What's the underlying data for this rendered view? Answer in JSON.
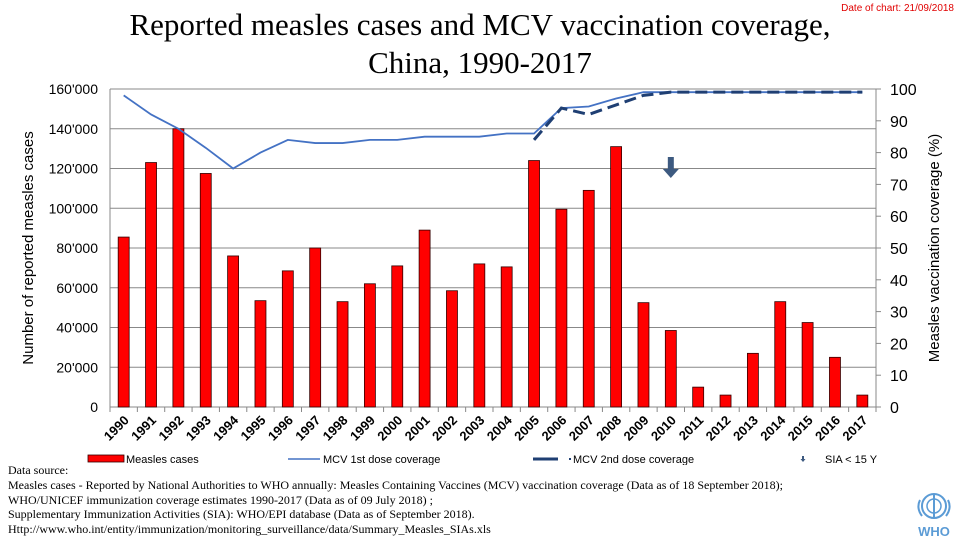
{
  "chart_date": "Date of chart: 21/09/2018",
  "chart_data": {
    "type": "bar",
    "title": "Reported measles cases and MCV vaccination coverage, China, 1990-2017",
    "categories": [
      "1990",
      "1991",
      "1992",
      "1993",
      "1994",
      "1995",
      "1996",
      "1997",
      "1998",
      "1999",
      "2000",
      "2001",
      "2002",
      "2003",
      "2004",
      "2005",
      "2006",
      "2007",
      "2008",
      "2009",
      "2010",
      "2011",
      "2012",
      "2013",
      "2014",
      "2015",
      "2016",
      "2017"
    ],
    "ylabel": "Number of reported measles cases",
    "y2label": "Measles vaccination coverage (%)",
    "ylim": [
      0,
      160000
    ],
    "y2lim": [
      0,
      100
    ],
    "yticks": [
      "0",
      "20'000",
      "40'000",
      "60'000",
      "80'000",
      "100'000",
      "120'000",
      "140'000",
      "160'000"
    ],
    "y2ticks": [
      "0",
      "10",
      "20",
      "30",
      "40",
      "50",
      "60",
      "70",
      "80",
      "90",
      "100"
    ],
    "grid": true,
    "legend_placement": "bottom",
    "series": [
      {
        "name": "Measles cases",
        "type": "bar",
        "axis": "left",
        "color": "#ff0000",
        "values": [
          85500,
          123000,
          140000,
          117500,
          76000,
          53500,
          68500,
          80000,
          53000,
          62000,
          71000,
          89000,
          58500,
          72000,
          70500,
          124000,
          99500,
          109000,
          131000,
          52500,
          38500,
          10000,
          6000,
          27000,
          53000,
          42500,
          25000,
          6000
        ]
      },
      {
        "name": "MCV 1st dose coverage",
        "type": "line",
        "axis": "right",
        "color": "#4472c4",
        "values": [
          98,
          92,
          87.5,
          81.5,
          75,
          80,
          84,
          83,
          83,
          84,
          84,
          85,
          85,
          85,
          86,
          86,
          94,
          94.5,
          97,
          99,
          99,
          99,
          99,
          99,
          99,
          99,
          99,
          99
        ]
      },
      {
        "name": "MCV 2nd dose coverage",
        "type": "line",
        "axis": "right",
        "color": "#1f3f73",
        "dashed": true,
        "values": [
          null,
          null,
          null,
          null,
          null,
          null,
          null,
          null,
          null,
          null,
          null,
          null,
          null,
          null,
          null,
          84,
          94,
          92,
          95,
          98,
          99,
          99,
          99,
          99,
          99,
          99,
          99,
          99
        ]
      },
      {
        "name": "SIA < 15 Y",
        "type": "marker",
        "color": "#3d5a80",
        "x": [
          "2010"
        ]
      }
    ]
  },
  "sources": [
    "Data source:",
    "Measles cases - Reported by National Authorities to WHO annually: Measles Containing Vaccines (MCV) vaccination coverage (Data as of 18 September 2018);",
    "WHO/UNICEF immunization coverage estimates 1990-2017 (Data as of 09 July 2018) ;",
    "Supplementary Immunization Activities (SIA): WHO/EPI database (Data as of September 2018).",
    "Http://www.who.int/entity/immunization/monitoring_surveillance/data/Summary_Measles_SIAs.xls"
  ],
  "logo_text": "WHO"
}
